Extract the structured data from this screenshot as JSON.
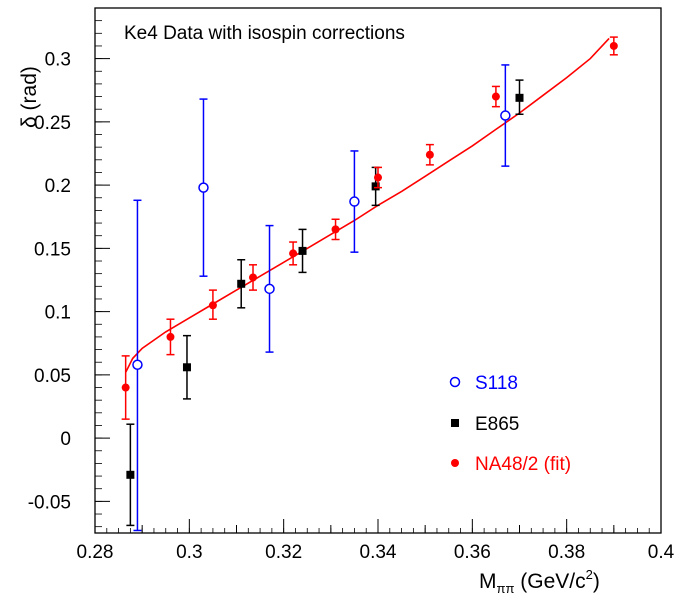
{
  "chart_data": {
    "type": "scatter",
    "title": "Ke4 Data with isospin corrections",
    "xlabel": "M",
    "xlabel_sub": "ππ",
    "xlabel_units": " (GeV/c",
    "xlabel_sup": "2",
    "xlabel_close": ")",
    "ylabel": "δ (rad)",
    "xlim": [
      0.28,
      0.4
    ],
    "ylim": [
      -0.075,
      0.34
    ],
    "xticks": [
      0.28,
      0.29,
      0.3,
      0.31,
      0.32,
      0.33,
      0.34,
      0.35,
      0.36,
      0.37,
      0.38,
      0.39,
      0.4
    ],
    "xtick_labels": [
      "0.28",
      "",
      "0.3",
      "",
      "0.32",
      "",
      "0.34",
      "",
      "0.36",
      "",
      "0.38",
      "",
      "0.4"
    ],
    "yticks": [
      -0.05,
      0,
      0.05,
      0.1,
      0.15,
      0.2,
      0.25,
      0.3
    ],
    "ytick_labels": [
      "-0.05",
      "0",
      "0.05",
      "0.1",
      "0.15",
      "0.2",
      "0.25",
      "0.3"
    ],
    "legend_position": "bottom-right",
    "series": [
      {
        "name": "S118",
        "color": "#0000ff",
        "marker": "open-circle",
        "points": [
          {
            "x": 0.289,
            "y": 0.058,
            "lo": -0.073,
            "hi": 0.188
          },
          {
            "x": 0.303,
            "y": 0.198,
            "lo": 0.128,
            "hi": 0.268
          },
          {
            "x": 0.317,
            "y": 0.118,
            "lo": 0.068,
            "hi": 0.168
          },
          {
            "x": 0.335,
            "y": 0.187,
            "lo": 0.147,
            "hi": 0.227
          },
          {
            "x": 0.367,
            "y": 0.255,
            "lo": 0.215,
            "hi": 0.295
          }
        ]
      },
      {
        "name": "E865",
        "color": "#000000",
        "marker": "filled-square",
        "points": [
          {
            "x": 0.2875,
            "y": -0.029,
            "lo": -0.069,
            "hi": 0.011
          },
          {
            "x": 0.2995,
            "y": 0.056,
            "lo": 0.031,
            "hi": 0.081
          },
          {
            "x": 0.311,
            "y": 0.122,
            "lo": 0.103,
            "hi": 0.141
          },
          {
            "x": 0.324,
            "y": 0.148,
            "lo": 0.131,
            "hi": 0.165
          },
          {
            "x": 0.3395,
            "y": 0.199,
            "lo": 0.184,
            "hi": 0.214
          },
          {
            "x": 0.37,
            "y": 0.269,
            "lo": 0.256,
            "hi": 0.283
          }
        ]
      },
      {
        "name": "NA48/2 (fit)",
        "color": "#ff0000",
        "marker": "filled-circle",
        "points": [
          {
            "x": 0.2865,
            "y": 0.04,
            "lo": 0.015,
            "hi": 0.065
          },
          {
            "x": 0.296,
            "y": 0.08,
            "lo": 0.066,
            "hi": 0.094
          },
          {
            "x": 0.305,
            "y": 0.105,
            "lo": 0.094,
            "hi": 0.117
          },
          {
            "x": 0.3135,
            "y": 0.127,
            "lo": 0.117,
            "hi": 0.137
          },
          {
            "x": 0.322,
            "y": 0.146,
            "lo": 0.137,
            "hi": 0.155
          },
          {
            "x": 0.331,
            "y": 0.165,
            "lo": 0.157,
            "hi": 0.173
          },
          {
            "x": 0.34,
            "y": 0.206,
            "lo": 0.198,
            "hi": 0.214
          },
          {
            "x": 0.351,
            "y": 0.224,
            "lo": 0.216,
            "hi": 0.232
          },
          {
            "x": 0.365,
            "y": 0.27,
            "lo": 0.262,
            "hi": 0.278
          },
          {
            "x": 0.39,
            "y": 0.31,
            "lo": 0.303,
            "hi": 0.317
          }
        ]
      }
    ],
    "fit_curve": {
      "color": "#ff0000",
      "x": [
        0.2865,
        0.288,
        0.29,
        0.295,
        0.3,
        0.305,
        0.31,
        0.315,
        0.32,
        0.325,
        0.33,
        0.335,
        0.34,
        0.345,
        0.35,
        0.355,
        0.36,
        0.365,
        0.37,
        0.375,
        0.38,
        0.385,
        0.389
      ],
      "y": [
        0.052,
        0.063,
        0.071,
        0.084,
        0.095,
        0.106,
        0.117,
        0.128,
        0.139,
        0.15,
        0.161,
        0.172,
        0.184,
        0.195,
        0.207,
        0.219,
        0.231,
        0.244,
        0.257,
        0.271,
        0.285,
        0.3,
        0.316
      ]
    }
  }
}
